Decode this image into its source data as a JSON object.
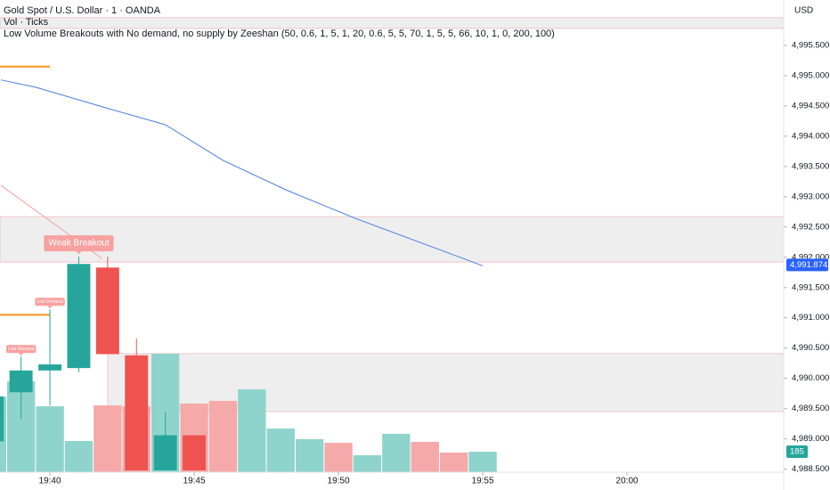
{
  "chart_data": {
    "type": "candlestick",
    "title": "Gold Spot / U.S. Dollar · 1 · OANDA",
    "subtitle": "Vol · Ticks",
    "indicator": "Low Volume Breakouts with No demand, no supply by Zeeshan (50, 0.6, 1, 5, 1, 20, 0.6, 5, 5, 70, 1, 5, 5, 66, 10, 1, 0, 200, 100)",
    "currency": "USD",
    "x": [
      38,
      39,
      40,
      41,
      42,
      43,
      44,
      45
    ],
    "open": [
      4988.96,
      4989.77,
      4990.13,
      4990.17,
      4991.83,
      4990.38,
      4988.48,
      4989.06
    ],
    "high": [
      4989.92,
      4990.36,
      4991.14,
      4992.01,
      4992.01,
      4990.66,
      4989.45,
      4989.06
    ],
    "low": [
      4988.92,
      4989.33,
      4989.55,
      4990.1,
      4990.4,
      4988.48,
      4988.48,
      4988.48
    ],
    "close": [
      4989.7,
      4990.13,
      4990.23,
      4991.89,
      4990.4,
      4988.48,
      4989.06,
      4988.48
    ],
    "up_color": "#26a69a",
    "down_color": "#ef5350",
    "volume": {
      "x": [
        38,
        39,
        40,
        41,
        42,
        43,
        44,
        45,
        46,
        47,
        48,
        49,
        50,
        51,
        52,
        53,
        54,
        55
      ],
      "values": [
        684,
        820,
        595,
        282,
        603,
        595,
        1070,
        620,
        644,
        748,
        394,
        298,
        265,
        153,
        346,
        274,
        177,
        185
      ],
      "colors": [
        "#8fd4cc",
        "#8fd4cc",
        "#8fd4cc",
        "#8fd4cc",
        "#f5a9a9",
        "#f5a9a9",
        "#8fd4cc",
        "#f5a9a9",
        "#f5a9a9",
        "#8fd4cc",
        "#8fd4cc",
        "#8fd4cc",
        "#f5a9a9",
        "#8fd4cc",
        "#8fd4cc",
        "#f5a9a9",
        "#f5a9a9",
        "#8fd4cc"
      ]
    },
    "last_price": {
      "value": 4991.874,
      "label": "4,991.874",
      "color": "#2962ff"
    },
    "lines": [
      {
        "color": "#4a7fe0",
        "x": [
          38.3,
          39.5,
          41,
          42,
          44,
          46,
          48.2,
          50.6,
          55
        ],
        "values": [
          4994.93,
          4994.81,
          4994.6,
          4994.46,
          4994.19,
          4993.6,
          4993.11,
          4992.64,
          4991.86
        ]
      },
      {
        "color": "#f7a1a1",
        "x": [
          38.3,
          41.8
        ],
        "values": [
          4993.19,
          4991.98
        ]
      }
    ],
    "levels": [
      {
        "value": 4995.15,
        "to": 40,
        "color": "#f7931e"
      },
      {
        "value": 4991.05,
        "to": 40,
        "color": "#f7931e"
      }
    ],
    "zones": [
      {
        "low": 4995.78,
        "high": 4995.96
      },
      {
        "low": 4991.92,
        "high": 4992.67
      },
      {
        "low": 4989.45,
        "high": 4990.41,
        "from": 42
      }
    ],
    "annotations": [
      {
        "text": "Weak Breakout",
        "x": 41
      },
      {
        "text": "Low Demand",
        "x": 40
      },
      {
        "text": "Low Demand",
        "x": 39
      }
    ],
    "xlim": [
      38.27,
      65.43
    ],
    "ylim": [
      4988.45,
      4996.25
    ],
    "xticks": [
      {
        "value": 40,
        "label": "19:40"
      },
      {
        "value": 45,
        "label": "19:45"
      },
      {
        "value": 50,
        "label": "19:50"
      },
      {
        "value": 55,
        "label": "19:55"
      },
      {
        "value": 60,
        "label": "20:00"
      }
    ],
    "yticks": [
      {
        "value": 4995.5,
        "label": "4,995.500"
      },
      {
        "value": 4995,
        "label": "4,995.000"
      },
      {
        "value": 4994.5,
        "label": "4,994.500"
      },
      {
        "value": 4994,
        "label": "4,994.000"
      },
      {
        "value": 4993.5,
        "label": "4,993.500"
      },
      {
        "value": 4993,
        "label": "4,993.000"
      },
      {
        "value": 4992.5,
        "label": "4,992.500"
      },
      {
        "value": 4992,
        "label": "4,992.000"
      },
      {
        "value": 4991.5,
        "label": "4,991.500"
      },
      {
        "value": 4991,
        "label": "4,991.000"
      },
      {
        "value": 4990.5,
        "label": "4,990.500"
      },
      {
        "value": 4990,
        "label": "4,990.000"
      },
      {
        "value": 4989.5,
        "label": "4,989.500"
      },
      {
        "value": 4989,
        "label": "4,989.000"
      },
      {
        "value": 4988.5,
        "label": "4,988.500"
      }
    ]
  }
}
